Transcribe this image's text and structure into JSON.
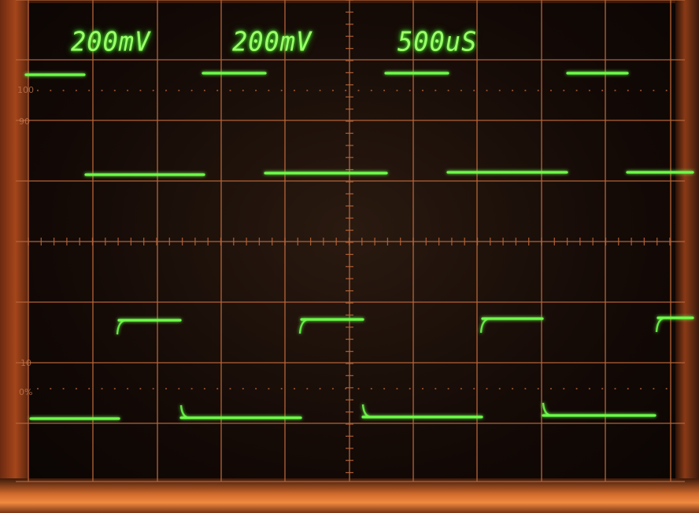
{
  "readouts": {
    "ch1_scale": "200mV",
    "ch2_scale": "200mV",
    "timebase": "500uS"
  },
  "graticule_labels": {
    "top_100": "100",
    "top_90": "90",
    "bottom_10": "10",
    "bottom_0": "0%"
  },
  "colors": {
    "trace": "#6dff4a",
    "graticule": "#b9663a",
    "screen_bg": "#140a06"
  },
  "traces": {
    "upper_square_wave": "trace-1",
    "lower_square_wave": "trace-2"
  }
}
